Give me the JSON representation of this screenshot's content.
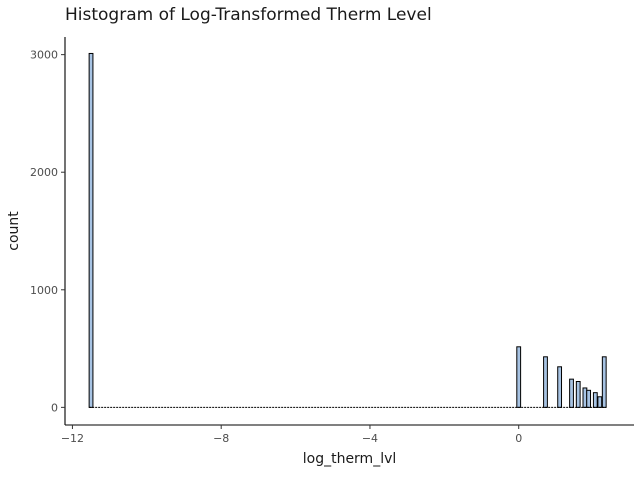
{
  "chart_data": {
    "type": "bar",
    "title": "Histogram of Log-Transformed Therm Level",
    "xlabel": "log_therm_lvl",
    "ylabel": "count",
    "xlim": [
      -12.2,
      3.1
    ],
    "ylim": [
      -150,
      3150
    ],
    "xticks": [
      -12,
      -8,
      -4,
      0
    ],
    "xtick_labels": [
      "−12",
      "−8",
      "−4",
      "0"
    ],
    "yticks": [
      0,
      1000,
      2000,
      3000
    ],
    "ytick_labels": [
      "0",
      "1000",
      "2000",
      "3000"
    ],
    "grid": false,
    "bar_color": "#a7c3e3",
    "bar_edge_color": "#000000",
    "bin_start": -11.55,
    "bin_end": 2.35,
    "bins": [
      {
        "x": -11.5,
        "count": 3010
      },
      {
        "x": 0.0,
        "count": 515
      },
      {
        "x": 0.72,
        "count": 430
      },
      {
        "x": 1.1,
        "count": 345
      },
      {
        "x": 1.42,
        "count": 240
      },
      {
        "x": 1.6,
        "count": 220
      },
      {
        "x": 1.78,
        "count": 165
      },
      {
        "x": 1.88,
        "count": 145
      },
      {
        "x": 2.06,
        "count": 125
      },
      {
        "x": 2.18,
        "count": 90
      },
      {
        "x": 2.3,
        "count": 430
      }
    ]
  }
}
